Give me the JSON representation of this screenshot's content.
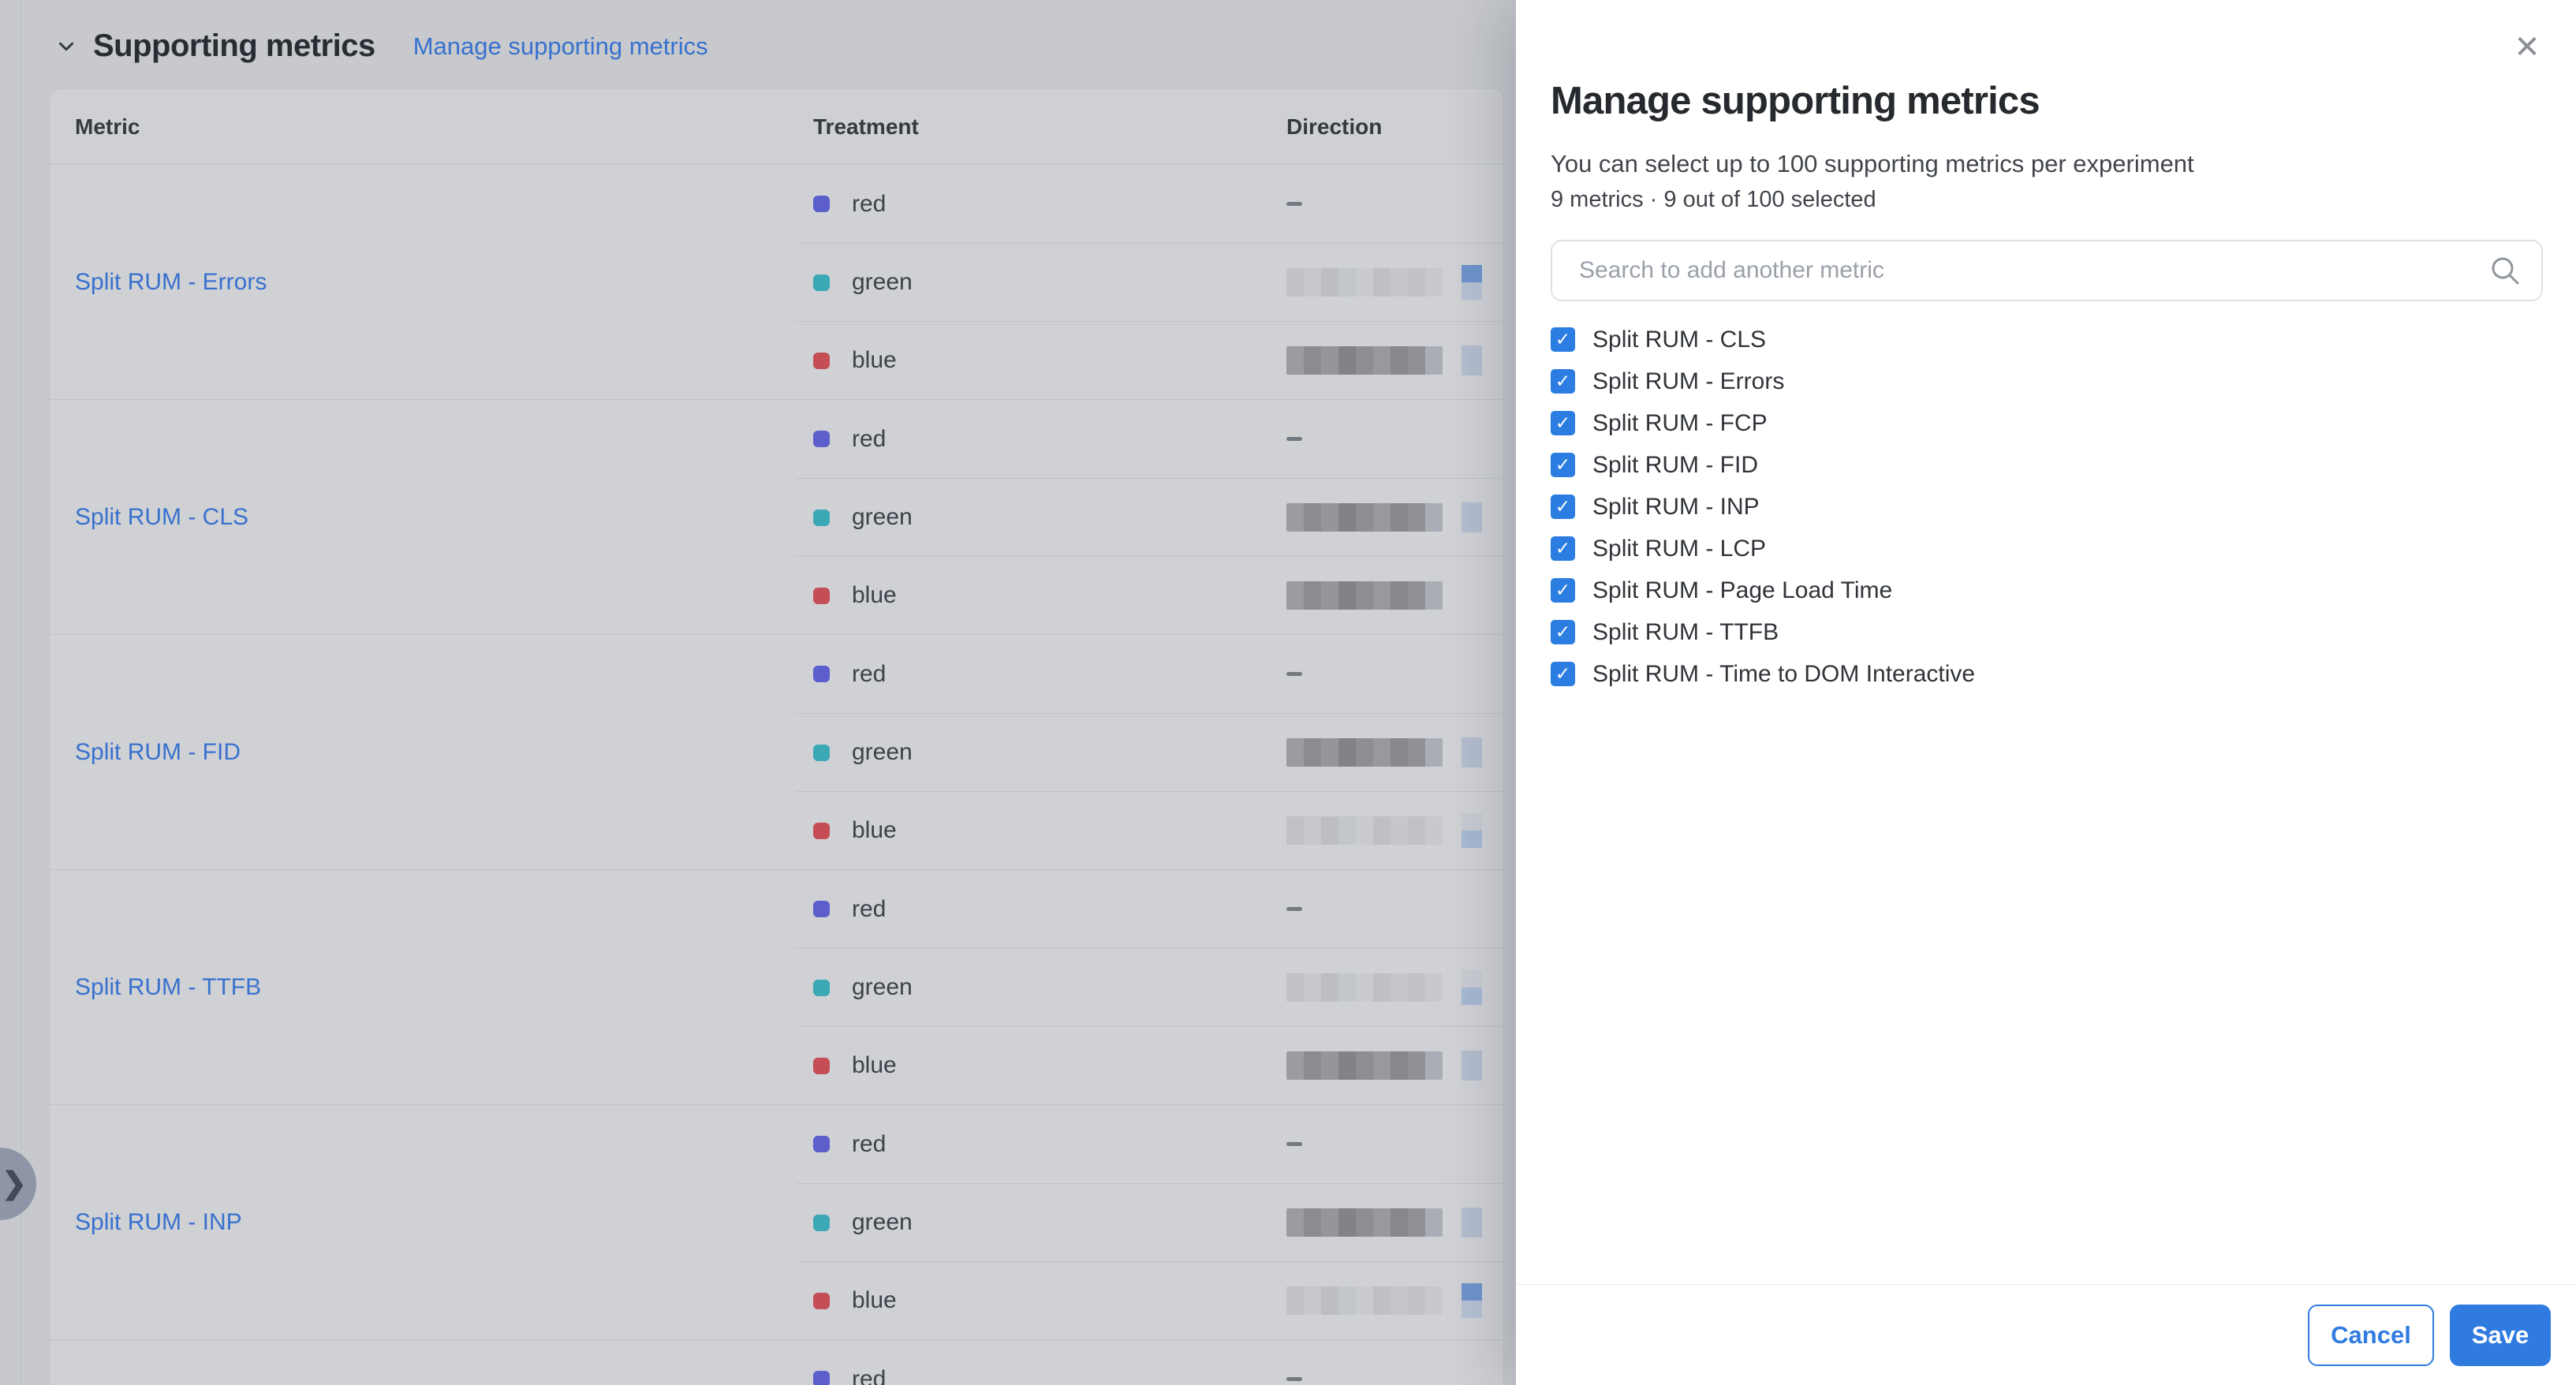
{
  "header": {
    "title": "Supporting metrics",
    "manage_link": "Manage supporting metrics"
  },
  "table": {
    "columns": [
      "Metric",
      "Treatment",
      "Direction"
    ],
    "groups": [
      {
        "metric": "Split RUM - Errors",
        "rows": [
          {
            "treatment": "red",
            "swatch_color": "#6d6ff2",
            "direction": {
              "kind": "dash"
            }
          },
          {
            "treatment": "green",
            "swatch_color": "#45cbd8",
            "direction": {
              "kind": "blur",
              "tone": "light",
              "chip": "stacked-strong"
            }
          },
          {
            "treatment": "blue",
            "swatch_color": "#ef5a61",
            "direction": {
              "kind": "blur",
              "tone": "dark",
              "chip": "flat"
            }
          }
        ]
      },
      {
        "metric": "Split RUM - CLS",
        "rows": [
          {
            "treatment": "red",
            "swatch_color": "#6d6ff2",
            "direction": {
              "kind": "dash"
            }
          },
          {
            "treatment": "green",
            "swatch_color": "#45cbd8",
            "direction": {
              "kind": "blur",
              "tone": "dark",
              "chip": "flat"
            }
          },
          {
            "treatment": "blue",
            "swatch_color": "#ef5a61",
            "direction": {
              "kind": "blur",
              "tone": "dark",
              "chip": "none"
            }
          }
        ]
      },
      {
        "metric": "Split RUM - FID",
        "rows": [
          {
            "treatment": "red",
            "swatch_color": "#6d6ff2",
            "direction": {
              "kind": "dash"
            }
          },
          {
            "treatment": "green",
            "swatch_color": "#45cbd8",
            "direction": {
              "kind": "blur",
              "tone": "dark",
              "chip": "flat"
            }
          },
          {
            "treatment": "blue",
            "swatch_color": "#ef5a61",
            "direction": {
              "kind": "blur",
              "tone": "light",
              "chip": "stacked-light"
            }
          }
        ]
      },
      {
        "metric": "Split RUM - TTFB",
        "rows": [
          {
            "treatment": "red",
            "swatch_color": "#6d6ff2",
            "direction": {
              "kind": "dash"
            }
          },
          {
            "treatment": "green",
            "swatch_color": "#45cbd8",
            "direction": {
              "kind": "blur",
              "tone": "light",
              "chip": "stacked-light"
            }
          },
          {
            "treatment": "blue",
            "swatch_color": "#ef5a61",
            "direction": {
              "kind": "blur",
              "tone": "dark",
              "chip": "flat"
            }
          }
        ]
      },
      {
        "metric": "Split RUM - INP",
        "rows": [
          {
            "treatment": "red",
            "swatch_color": "#6d6ff2",
            "direction": {
              "kind": "dash"
            }
          },
          {
            "treatment": "green",
            "swatch_color": "#45cbd8",
            "direction": {
              "kind": "blur",
              "tone": "dark",
              "chip": "flat"
            }
          },
          {
            "treatment": "blue",
            "swatch_color": "#ef5a61",
            "direction": {
              "kind": "blur",
              "tone": "light",
              "chip": "stacked-strong"
            }
          }
        ]
      },
      {
        "metric": "",
        "rows": [
          {
            "treatment": "red",
            "swatch_color": "#6d6ff2",
            "direction": {
              "kind": "dash"
            }
          }
        ]
      }
    ]
  },
  "modal": {
    "title": "Manage supporting metrics",
    "subtitle": "You can select up to 100 supporting metrics per experiment",
    "count_line": "9 metrics · 9 out of 100 selected",
    "search_placeholder": "Search to add another metric",
    "close_icon": "✕",
    "check_glyph": "✓",
    "metrics": [
      "Split RUM - CLS",
      "Split RUM - Errors",
      "Split RUM - FCP",
      "Split RUM - FID",
      "Split RUM - INP",
      "Split RUM - LCP",
      "Split RUM - Page Load Time",
      "Split RUM - TTFB",
      "Split RUM - Time to DOM Interactive"
    ],
    "cancel_label": "Cancel",
    "save_label": "Save"
  },
  "icons": {
    "section_chevron": "chevron-down",
    "search": "magnifier",
    "expand_handle": "chevron-right",
    "close": "close"
  },
  "colors": {
    "accent_blue": "#4287f5",
    "checkbox_blue": "#2b7de1",
    "button_blue": "#2f7be0",
    "chip_flat": "#d9e4f6",
    "chip_strong_top": "#85b1f3",
    "chip_strong_bottom": "#dceafc",
    "chip_light_top": "#f3f5f8",
    "chip_light_bottom": "#cadefb",
    "swatch_red_treatment": "#6d6ff2",
    "swatch_green_treatment": "#45cbd8",
    "swatch_blue_treatment": "#ef5a61"
  }
}
